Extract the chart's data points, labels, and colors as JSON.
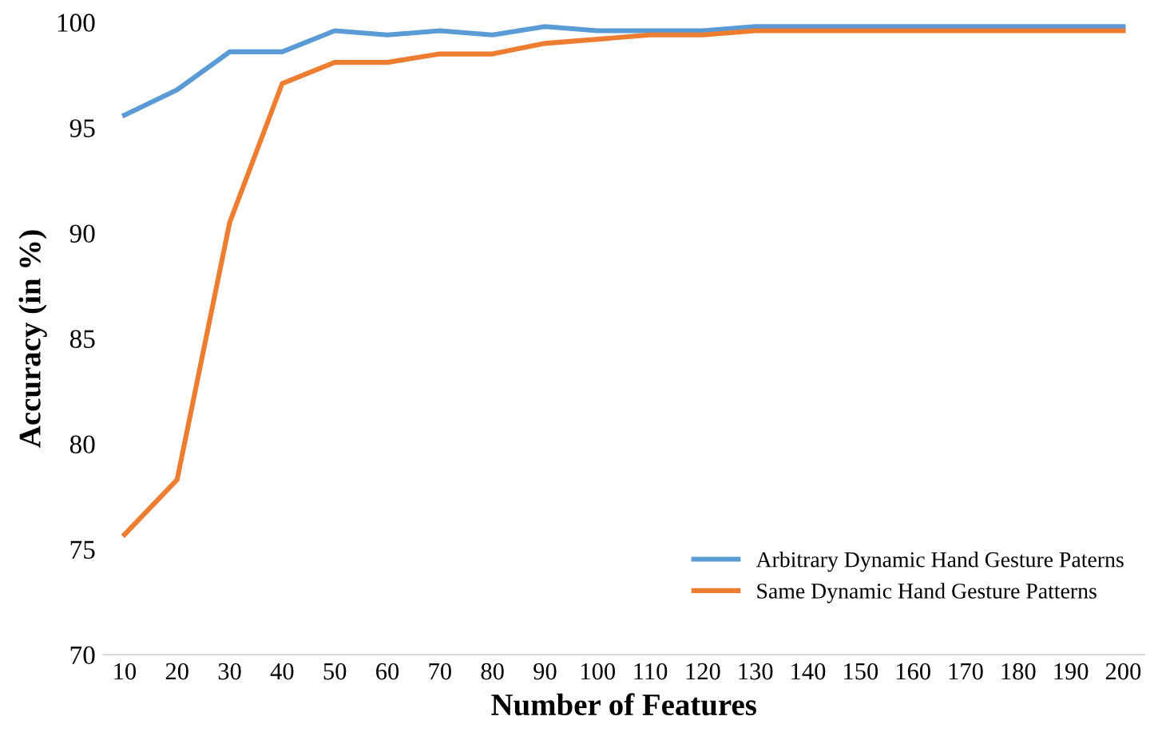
{
  "chart_data": {
    "type": "line",
    "xlabel": "Number of Features",
    "ylabel": "Accuracy (in %)",
    "categories": [
      "10",
      "20",
      "30",
      "40",
      "50",
      "60",
      "70",
      "80",
      "90",
      "100",
      "110",
      "120",
      "130",
      "140",
      "150",
      "160",
      "170",
      "180",
      "190",
      "200"
    ],
    "series": [
      {
        "name": "Arbitrary Dynamic Hand Gesture Paterns",
        "color": "#5b9bd5",
        "values": [
          95.6,
          96.8,
          98.6,
          98.6,
          99.6,
          99.4,
          99.6,
          99.4,
          99.8,
          99.6,
          99.6,
          99.6,
          99.8,
          99.8,
          99.8,
          99.8,
          99.8,
          99.8,
          99.8,
          99.8
        ]
      },
      {
        "name": "Same Dynamic Hand Gesture Patterns",
        "color": "#ed7d31",
        "values": [
          75.7,
          78.3,
          90.5,
          97.1,
          98.1,
          98.1,
          98.5,
          98.5,
          99.0,
          99.2,
          99.4,
          99.4,
          99.6,
          99.6,
          99.6,
          99.6,
          99.6,
          99.6,
          99.6,
          99.6
        ]
      }
    ],
    "ylim": [
      70,
      100
    ],
    "yticks": [
      70,
      75,
      80,
      85,
      90,
      95,
      100
    ],
    "grid": false,
    "legend": "bottom right",
    "marker": "none",
    "line_style": "solid"
  }
}
